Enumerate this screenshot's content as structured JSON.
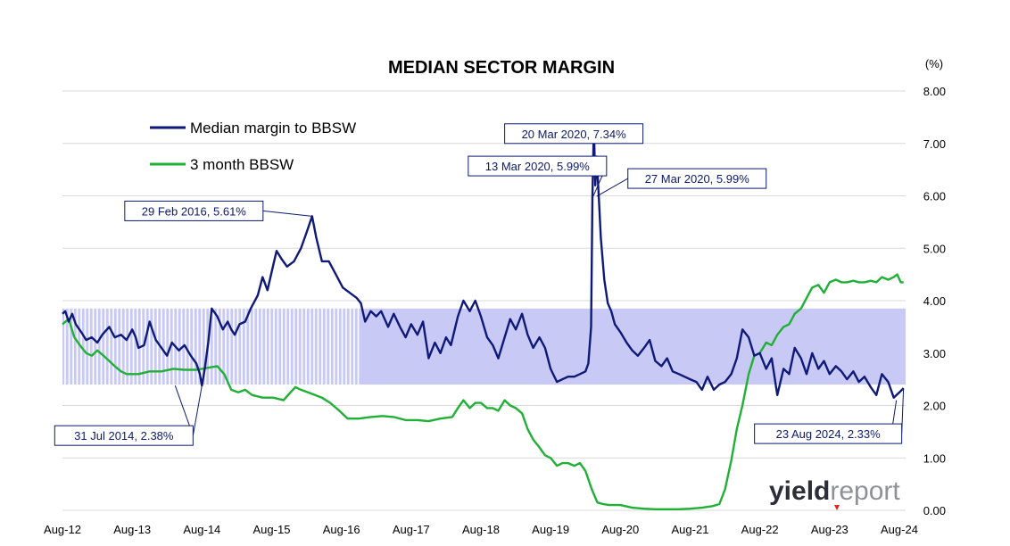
{
  "chart_data": {
    "type": "line",
    "title": "MEDIAN SECTOR MARGIN",
    "yunit": "(%)",
    "ylim": [
      0,
      8
    ],
    "yticks": [
      "0.00",
      "1.00",
      "2.00",
      "3.00",
      "4.00",
      "5.00",
      "6.00",
      "7.00",
      "8.00"
    ],
    "xlim": [
      2012.58,
      2024.67
    ],
    "xticks": [
      {
        "label": "Aug-12",
        "x": 2012.58
      },
      {
        "label": "Aug-13",
        "x": 2013.58
      },
      {
        "label": "Aug-14",
        "x": 2014.58
      },
      {
        "label": "Aug-15",
        "x": 2015.58
      },
      {
        "label": "Aug-16",
        "x": 2016.58
      },
      {
        "label": "Aug-17",
        "x": 2017.58
      },
      {
        "label": "Aug-18",
        "x": 2018.58
      },
      {
        "label": "Aug-19",
        "x": 2019.58
      },
      {
        "label": "Aug-20",
        "x": 2020.58
      },
      {
        "label": "Aug-21",
        "x": 2021.58
      },
      {
        "label": "Aug-22",
        "x": 2022.58
      },
      {
        "label": "Aug-23",
        "x": 2023.58
      },
      {
        "label": "Aug-24",
        "x": 2024.58
      }
    ],
    "band": {
      "ymin": 2.4,
      "ymax": 3.85,
      "color": "#c9c9f5"
    },
    "grid": true,
    "legend_position": "top-left",
    "series": [
      {
        "name": "Median margin to BBSW",
        "color": "#0f1a78",
        "points": [
          [
            2012.58,
            3.75
          ],
          [
            2012.62,
            3.8
          ],
          [
            2012.67,
            3.6
          ],
          [
            2012.72,
            3.75
          ],
          [
            2012.77,
            3.55
          ],
          [
            2012.85,
            3.4
          ],
          [
            2012.92,
            3.25
          ],
          [
            2013.0,
            3.3
          ],
          [
            2013.08,
            3.2
          ],
          [
            2013.15,
            3.35
          ],
          [
            2013.25,
            3.5
          ],
          [
            2013.33,
            3.3
          ],
          [
            2013.42,
            3.35
          ],
          [
            2013.5,
            3.25
          ],
          [
            2013.58,
            3.45
          ],
          [
            2013.63,
            3.3
          ],
          [
            2013.67,
            3.1
          ],
          [
            2013.75,
            3.15
          ],
          [
            2013.83,
            3.6
          ],
          [
            2013.88,
            3.4
          ],
          [
            2013.92,
            3.25
          ],
          [
            2014.0,
            3.1
          ],
          [
            2014.08,
            2.95
          ],
          [
            2014.15,
            3.2
          ],
          [
            2014.25,
            3.05
          ],
          [
            2014.33,
            3.15
          ],
          [
            2014.42,
            2.95
          ],
          [
            2014.5,
            2.8
          ],
          [
            2014.55,
            2.6
          ],
          [
            2014.58,
            2.38
          ],
          [
            2014.62,
            2.7
          ],
          [
            2014.67,
            3.2
          ],
          [
            2014.72,
            3.85
          ],
          [
            2014.8,
            3.7
          ],
          [
            2014.88,
            3.45
          ],
          [
            2014.95,
            3.6
          ],
          [
            2015.0,
            3.45
          ],
          [
            2015.05,
            3.35
          ],
          [
            2015.12,
            3.55
          ],
          [
            2015.2,
            3.6
          ],
          [
            2015.28,
            3.85
          ],
          [
            2015.38,
            4.1
          ],
          [
            2015.45,
            4.45
          ],
          [
            2015.52,
            4.2
          ],
          [
            2015.58,
            4.55
          ],
          [
            2015.65,
            4.95
          ],
          [
            2015.72,
            4.8
          ],
          [
            2015.8,
            4.65
          ],
          [
            2015.9,
            4.75
          ],
          [
            2016.0,
            5.0
          ],
          [
            2016.08,
            5.3
          ],
          [
            2016.16,
            5.61
          ],
          [
            2016.22,
            5.2
          ],
          [
            2016.3,
            4.75
          ],
          [
            2016.4,
            4.75
          ],
          [
            2016.5,
            4.5
          ],
          [
            2016.6,
            4.25
          ],
          [
            2016.7,
            4.15
          ],
          [
            2016.8,
            4.05
          ],
          [
            2016.86,
            3.95
          ],
          [
            2016.92,
            3.6
          ],
          [
            2017.0,
            3.8
          ],
          [
            2017.08,
            3.7
          ],
          [
            2017.15,
            3.8
          ],
          [
            2017.25,
            3.5
          ],
          [
            2017.33,
            3.75
          ],
          [
            2017.42,
            3.5
          ],
          [
            2017.5,
            3.3
          ],
          [
            2017.58,
            3.55
          ],
          [
            2017.67,
            3.35
          ],
          [
            2017.75,
            3.6
          ],
          [
            2017.83,
            2.9
          ],
          [
            2017.92,
            3.2
          ],
          [
            2018.0,
            3.0
          ],
          [
            2018.08,
            3.3
          ],
          [
            2018.15,
            3.15
          ],
          [
            2018.25,
            3.7
          ],
          [
            2018.33,
            4.0
          ],
          [
            2018.42,
            3.8
          ],
          [
            2018.5,
            4.0
          ],
          [
            2018.58,
            3.7
          ],
          [
            2018.67,
            3.3
          ],
          [
            2018.75,
            3.15
          ],
          [
            2018.83,
            2.9
          ],
          [
            2018.92,
            3.3
          ],
          [
            2019.0,
            3.65
          ],
          [
            2019.08,
            3.45
          ],
          [
            2019.17,
            3.75
          ],
          [
            2019.25,
            3.35
          ],
          [
            2019.33,
            3.1
          ],
          [
            2019.42,
            3.3
          ],
          [
            2019.5,
            3.1
          ],
          [
            2019.58,
            2.7
          ],
          [
            2019.67,
            2.45
          ],
          [
            2019.75,
            2.5
          ],
          [
            2019.83,
            2.55
          ],
          [
            2019.92,
            2.55
          ],
          [
            2020.0,
            2.6
          ],
          [
            2020.08,
            2.65
          ],
          [
            2020.12,
            2.8
          ],
          [
            2020.16,
            3.5
          ],
          [
            2020.18,
            5.99
          ],
          [
            2020.2,
            7.34
          ],
          [
            2020.22,
            6.2
          ],
          [
            2020.24,
            6.75
          ],
          [
            2020.27,
            5.99
          ],
          [
            2020.3,
            5.2
          ],
          [
            2020.35,
            4.4
          ],
          [
            2020.4,
            3.95
          ],
          [
            2020.45,
            3.8
          ],
          [
            2020.5,
            3.55
          ],
          [
            2020.58,
            3.4
          ],
          [
            2020.67,
            3.2
          ],
          [
            2020.75,
            3.05
          ],
          [
            2020.83,
            2.95
          ],
          [
            2020.92,
            3.1
          ],
          [
            2021.0,
            3.25
          ],
          [
            2021.08,
            2.85
          ],
          [
            2021.17,
            2.75
          ],
          [
            2021.25,
            2.9
          ],
          [
            2021.33,
            2.65
          ],
          [
            2021.42,
            2.6
          ],
          [
            2021.5,
            2.55
          ],
          [
            2021.58,
            2.5
          ],
          [
            2021.67,
            2.45
          ],
          [
            2021.75,
            2.3
          ],
          [
            2021.83,
            2.55
          ],
          [
            2021.92,
            2.3
          ],
          [
            2022.0,
            2.4
          ],
          [
            2022.08,
            2.45
          ],
          [
            2022.17,
            2.6
          ],
          [
            2022.25,
            2.9
          ],
          [
            2022.33,
            3.45
          ],
          [
            2022.42,
            3.3
          ],
          [
            2022.5,
            2.95
          ],
          [
            2022.58,
            3.0
          ],
          [
            2022.67,
            2.7
          ],
          [
            2022.75,
            2.9
          ],
          [
            2022.83,
            2.2
          ],
          [
            2022.92,
            2.7
          ],
          [
            2023.0,
            2.6
          ],
          [
            2023.08,
            3.1
          ],
          [
            2023.17,
            2.9
          ],
          [
            2023.25,
            2.6
          ],
          [
            2023.33,
            3.0
          ],
          [
            2023.42,
            2.7
          ],
          [
            2023.5,
            2.85
          ],
          [
            2023.58,
            2.6
          ],
          [
            2023.67,
            2.75
          ],
          [
            2023.75,
            2.65
          ],
          [
            2023.83,
            2.5
          ],
          [
            2023.92,
            2.65
          ],
          [
            2024.0,
            2.45
          ],
          [
            2024.08,
            2.55
          ],
          [
            2024.17,
            2.35
          ],
          [
            2024.25,
            2.2
          ],
          [
            2024.33,
            2.6
          ],
          [
            2024.42,
            2.45
          ],
          [
            2024.5,
            2.15
          ],
          [
            2024.58,
            2.25
          ],
          [
            2024.64,
            2.33
          ]
        ]
      },
      {
        "name": "3 month BBSW",
        "color": "#1fb035",
        "points": [
          [
            2012.58,
            3.55
          ],
          [
            2012.67,
            3.65
          ],
          [
            2012.75,
            3.3
          ],
          [
            2012.83,
            3.15
          ],
          [
            2012.92,
            3.0
          ],
          [
            2013.0,
            2.95
          ],
          [
            2013.08,
            3.05
          ],
          [
            2013.17,
            2.95
          ],
          [
            2013.25,
            2.85
          ],
          [
            2013.33,
            2.75
          ],
          [
            2013.42,
            2.65
          ],
          [
            2013.5,
            2.6
          ],
          [
            2013.67,
            2.6
          ],
          [
            2013.83,
            2.65
          ],
          [
            2014.0,
            2.65
          ],
          [
            2014.17,
            2.7
          ],
          [
            2014.33,
            2.68
          ],
          [
            2014.5,
            2.68
          ],
          [
            2014.67,
            2.72
          ],
          [
            2014.8,
            2.75
          ],
          [
            2014.9,
            2.6
          ],
          [
            2015.0,
            2.3
          ],
          [
            2015.1,
            2.25
          ],
          [
            2015.2,
            2.3
          ],
          [
            2015.3,
            2.2
          ],
          [
            2015.45,
            2.15
          ],
          [
            2015.6,
            2.15
          ],
          [
            2015.75,
            2.1
          ],
          [
            2015.85,
            2.25
          ],
          [
            2015.92,
            2.35
          ],
          [
            2016.0,
            2.3
          ],
          [
            2016.1,
            2.25
          ],
          [
            2016.2,
            2.2
          ],
          [
            2016.3,
            2.15
          ],
          [
            2016.42,
            2.05
          ],
          [
            2016.55,
            1.9
          ],
          [
            2016.67,
            1.75
          ],
          [
            2016.83,
            1.75
          ],
          [
            2017.0,
            1.78
          ],
          [
            2017.17,
            1.8
          ],
          [
            2017.33,
            1.78
          ],
          [
            2017.5,
            1.72
          ],
          [
            2017.67,
            1.72
          ],
          [
            2017.83,
            1.7
          ],
          [
            2018.0,
            1.75
          ],
          [
            2018.17,
            1.78
          ],
          [
            2018.25,
            1.95
          ],
          [
            2018.33,
            2.1
          ],
          [
            2018.42,
            1.95
          ],
          [
            2018.5,
            2.05
          ],
          [
            2018.58,
            2.05
          ],
          [
            2018.67,
            1.95
          ],
          [
            2018.75,
            1.95
          ],
          [
            2018.83,
            1.9
          ],
          [
            2018.92,
            2.1
          ],
          [
            2019.0,
            2.0
          ],
          [
            2019.08,
            1.95
          ],
          [
            2019.17,
            1.85
          ],
          [
            2019.25,
            1.55
          ],
          [
            2019.33,
            1.35
          ],
          [
            2019.42,
            1.2
          ],
          [
            2019.5,
            1.05
          ],
          [
            2019.58,
            1.0
          ],
          [
            2019.67,
            0.85
          ],
          [
            2019.75,
            0.9
          ],
          [
            2019.83,
            0.9
          ],
          [
            2019.92,
            0.85
          ],
          [
            2020.0,
            0.9
          ],
          [
            2020.08,
            0.75
          ],
          [
            2020.17,
            0.4
          ],
          [
            2020.25,
            0.15
          ],
          [
            2020.33,
            0.12
          ],
          [
            2020.42,
            0.1
          ],
          [
            2020.58,
            0.1
          ],
          [
            2020.75,
            0.05
          ],
          [
            2020.92,
            0.03
          ],
          [
            2021.08,
            0.02
          ],
          [
            2021.25,
            0.02
          ],
          [
            2021.42,
            0.02
          ],
          [
            2021.58,
            0.03
          ],
          [
            2021.75,
            0.05
          ],
          [
            2021.9,
            0.08
          ],
          [
            2022.0,
            0.12
          ],
          [
            2022.08,
            0.4
          ],
          [
            2022.17,
            0.95
          ],
          [
            2022.25,
            1.55
          ],
          [
            2022.33,
            2.0
          ],
          [
            2022.42,
            2.6
          ],
          [
            2022.5,
            2.95
          ],
          [
            2022.58,
            3.0
          ],
          [
            2022.67,
            3.2
          ],
          [
            2022.75,
            3.15
          ],
          [
            2022.83,
            3.35
          ],
          [
            2022.92,
            3.5
          ],
          [
            2023.0,
            3.55
          ],
          [
            2023.08,
            3.75
          ],
          [
            2023.17,
            3.85
          ],
          [
            2023.25,
            4.05
          ],
          [
            2023.33,
            4.25
          ],
          [
            2023.42,
            4.3
          ],
          [
            2023.5,
            4.15
          ],
          [
            2023.58,
            4.35
          ],
          [
            2023.67,
            4.4
          ],
          [
            2023.75,
            4.35
          ],
          [
            2023.83,
            4.35
          ],
          [
            2023.92,
            4.38
          ],
          [
            2024.0,
            4.35
          ],
          [
            2024.08,
            4.35
          ],
          [
            2024.17,
            4.38
          ],
          [
            2024.25,
            4.35
          ],
          [
            2024.33,
            4.45
          ],
          [
            2024.42,
            4.4
          ],
          [
            2024.5,
            4.45
          ],
          [
            2024.55,
            4.5
          ],
          [
            2024.6,
            4.35
          ],
          [
            2024.64,
            4.35
          ]
        ]
      }
    ],
    "annotations": [
      {
        "text": "20 Mar 2020,  7.34%",
        "x": 2020.2,
        "y": 7.34
      },
      {
        "text": "13 Mar 2020,  5.99%",
        "x": 2020.19,
        "y": 5.99
      },
      {
        "text": "27 Mar 2020,  5.99%",
        "x": 2020.24,
        "y": 5.99
      },
      {
        "text": "29 Feb 2016,  5.61%",
        "x": 2016.16,
        "y": 5.61
      },
      {
        "text": "31 Jul 2014,  2.38%",
        "x": 2014.58,
        "y": 2.38
      },
      {
        "text": "23 Aug 2024,  2.33%",
        "x": 2024.64,
        "y": 2.33
      }
    ]
  },
  "logo": {
    "part1": "yield",
    "part2": "report"
  }
}
